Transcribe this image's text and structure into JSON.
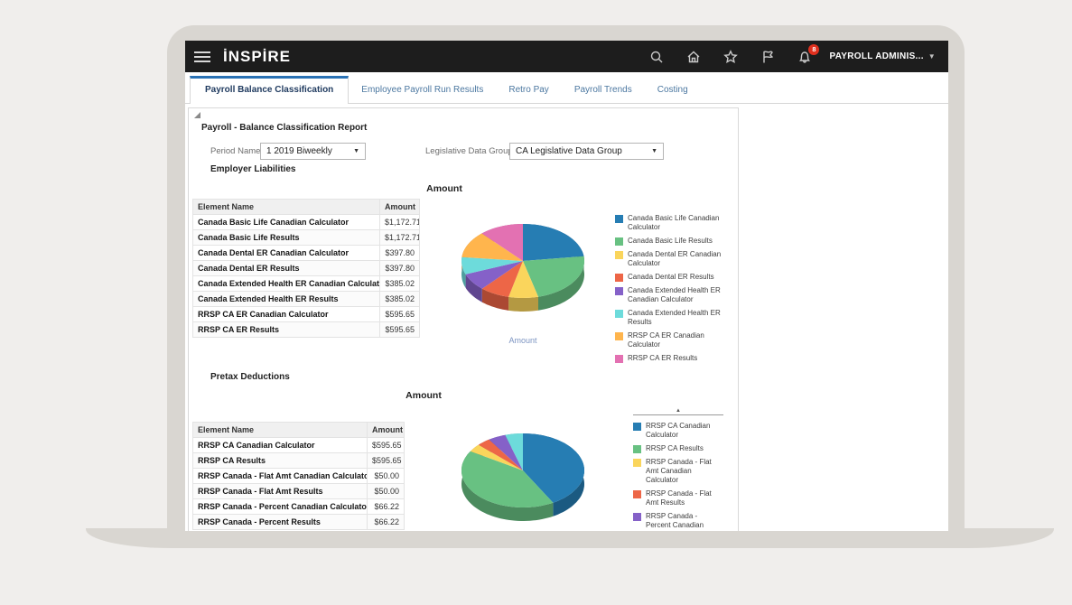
{
  "header": {
    "logo": "İNSPİRE",
    "icons": [
      "hamburger-icon",
      "search-icon",
      "home-icon",
      "star-icon",
      "flag-icon",
      "bell-icon"
    ],
    "notification_count": "8",
    "user_menu": "PAYROLL ADMINIS..."
  },
  "tabs": [
    {
      "label": "Payroll Balance Classification",
      "active": true
    },
    {
      "label": "Employee Payroll Run Results",
      "active": false
    },
    {
      "label": "Retro Pay",
      "active": false
    },
    {
      "label": "Payroll Trends",
      "active": false
    },
    {
      "label": "Costing",
      "active": false
    }
  ],
  "report": {
    "title": "Payroll - Balance Classification Report",
    "filters": {
      "period_label": "Period Name",
      "period_value": "1 2019 Biweekly",
      "ldg_label": "Legislative Data Group",
      "ldg_value": "CA Legislative Data Group"
    }
  },
  "sections": [
    {
      "heading": "Employer Liabilities",
      "table": {
        "headers": [
          "Element Name",
          "Amount"
        ],
        "rows": [
          [
            "Canada Basic Life Canadian Calculator",
            "$1,172.71"
          ],
          [
            "Canada Basic Life Results",
            "$1,172.71"
          ],
          [
            "Canada Dental ER Canadian Calculator",
            "$397.80"
          ],
          [
            "Canada Dental ER Results",
            "$397.80"
          ],
          [
            "Canada Extended Health ER Canadian Calculator",
            "$385.02"
          ],
          [
            "Canada Extended Health ER Results",
            "$385.02"
          ],
          [
            "RRSP CA ER Canadian Calculator",
            "$595.65"
          ],
          [
            "RRSP CA ER Results",
            "$595.65"
          ]
        ]
      }
    },
    {
      "heading": "Pretax Deductions",
      "table": {
        "headers": [
          "Element Name",
          "Amount"
        ],
        "rows": [
          [
            "RRSP CA Canadian Calculator",
            "$595.65"
          ],
          [
            "RRSP CA Results",
            "$595.65"
          ],
          [
            "RRSP Canada - Flat Amt Canadian Calculator",
            "$50.00"
          ],
          [
            "RRSP Canada - Flat Amt Results",
            "$50.00"
          ],
          [
            "RRSP Canada - Percent Canadian Calculator",
            "$66.22"
          ],
          [
            "RRSP Canada - Percent Results",
            "$66.22"
          ]
        ]
      }
    }
  ],
  "chart_data": [
    {
      "type": "pie",
      "title": "Amount",
      "footer_label": "Amount",
      "labels": [
        "Canada Basic Life Canadian Calculator",
        "Canada Basic Life Results",
        "Canada Dental ER Canadian Calculator",
        "Canada Dental ER Results",
        "Canada Extended Health ER Canadian Calculator",
        "Canada Extended Health ER Results",
        "RRSP CA ER Canadian Calculator",
        "RRSP CA ER Results"
      ],
      "values": [
        1172.71,
        1172.71,
        397.8,
        397.8,
        385.02,
        385.02,
        595.65,
        595.65
      ],
      "colors": [
        "#267db3",
        "#68c182",
        "#fad55c",
        "#ed6647",
        "#8561c8",
        "#6ddbdb",
        "#ffb54d",
        "#e371b2"
      ],
      "legend_position": "right",
      "legend_scrollable": false,
      "style": "3d"
    },
    {
      "type": "pie",
      "title": "Amount",
      "footer_label": "",
      "labels": [
        "RRSP CA Canadian Calculator",
        "RRSP CA Results",
        "RRSP Canada - Flat Amt Canadian Calculator",
        "RRSP Canada - Flat Amt Results",
        "RRSP Canada - Percent Canadian Calculator",
        "RRSP Canada - Percent Results"
      ],
      "values": [
        595.65,
        595.65,
        50.0,
        50.0,
        66.22,
        66.22
      ],
      "colors": [
        "#267db3",
        "#68c182",
        "#fad55c",
        "#ed6647",
        "#8561c8",
        "#6ddbdb"
      ],
      "legend_position": "right",
      "legend_scrollable": true,
      "style": "3d"
    }
  ]
}
